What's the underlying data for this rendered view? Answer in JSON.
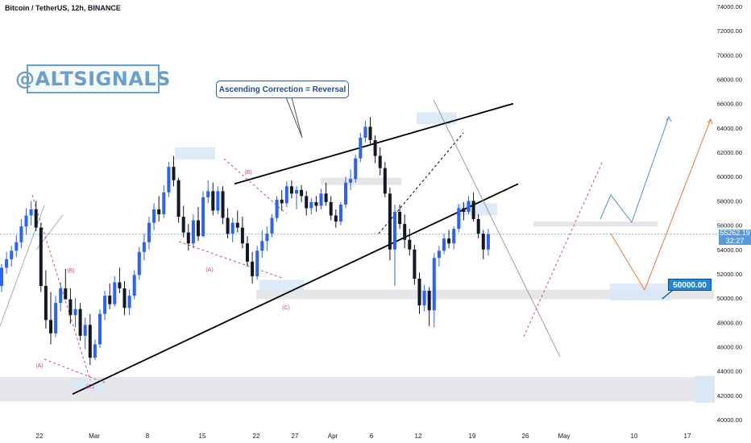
{
  "header": {
    "title": "Bitcoin / TetherUS, 12h, BINANCE"
  },
  "watermark": {
    "text": "@ALTSIGNALS"
  },
  "annotation": {
    "text": "Ascending Correction = Reversal"
  },
  "price_tag": {
    "price": "55262.19",
    "countdown": "32:27"
  },
  "target": {
    "label": "50000.00"
  },
  "wave_labels": [
    "(A)",
    "(B)",
    "(C)",
    "(A)",
    "(B)",
    "(C)"
  ],
  "colors": {
    "up": "#2962ff",
    "down": "#131722",
    "trend": "#000000",
    "zone": "#d7e6f7",
    "support": "#e6e6ea",
    "projection_blue": "#4a8fd8",
    "projection_orange": "#e8772e",
    "wave": "#d64a6a"
  },
  "chart_data": {
    "type": "candlestick",
    "title": "Bitcoin / TetherUS, 12h, BINANCE",
    "interval": "12h",
    "x_tick_labels": [
      "22",
      "Mar",
      "8",
      "15",
      "22",
      "27",
      "Apr",
      "6",
      "12",
      "19",
      "26",
      "May",
      "10",
      "17"
    ],
    "y_tick_labels": [
      "74000.00",
      "72000.00",
      "70000.00",
      "68000.00",
      "66000.00",
      "64000.00",
      "62000.00",
      "60000.00",
      "58000.00",
      "56000.00",
      "54000.00",
      "52000.00",
      "50000.00",
      "48000.00",
      "46000.00",
      "44000.00",
      "42000.00",
      "40000.00"
    ],
    "ylim": [
      40000,
      74000
    ],
    "grid": false,
    "last_price": 55262.19,
    "target_price": 50000.0,
    "ohlc": [
      [
        51000,
        52800,
        50500,
        52500
      ],
      [
        52500,
        53800,
        52000,
        53200
      ],
      [
        53200,
        54300,
        52600,
        53900
      ],
      [
        53900,
        55200,
        53400,
        54600
      ],
      [
        54600,
        56500,
        54100,
        55900
      ],
      [
        55900,
        57400,
        55200,
        56800
      ],
      [
        56800,
        58000,
        56000,
        57300
      ],
      [
        57300,
        58000,
        55500,
        55800
      ],
      [
        55800,
        56200,
        50500,
        51000
      ],
      [
        51000,
        52300,
        47500,
        48200
      ],
      [
        48200,
        50500,
        46200,
        47100
      ],
      [
        47100,
        50200,
        46800,
        49600
      ],
      [
        49600,
        51300,
        48900,
        50800
      ],
      [
        50800,
        52400,
        49900,
        49900
      ],
      [
        49900,
        50800,
        47900,
        48600
      ],
      [
        48600,
        50000,
        47600,
        49100
      ],
      [
        49100,
        49600,
        46500,
        46900
      ],
      [
        46900,
        48400,
        45800,
        47800
      ],
      [
        47800,
        48700,
        44500,
        45100
      ],
      [
        45100,
        46600,
        44900,
        46200
      ],
      [
        46200,
        49100,
        45900,
        48700
      ],
      [
        48700,
        50600,
        48200,
        50200
      ],
      [
        50200,
        51200,
        49100,
        49500
      ],
      [
        49500,
        51800,
        49300,
        51300
      ],
      [
        51300,
        52500,
        50400,
        50800
      ],
      [
        50800,
        51400,
        48600,
        49200
      ],
      [
        49200,
        50700,
        48600,
        50200
      ],
      [
        50200,
        52300,
        49900,
        51900
      ],
      [
        51900,
        54200,
        51500,
        53800
      ],
      [
        53800,
        55300,
        53100,
        54600
      ],
      [
        54600,
        56700,
        54000,
        56200
      ],
      [
        56200,
        57800,
        55600,
        57300
      ],
      [
        57300,
        58400,
        56300,
        56900
      ],
      [
        56900,
        59300,
        56600,
        58700
      ],
      [
        58700,
        61200,
        58300,
        60800
      ],
      [
        60800,
        61700,
        59200,
        59700
      ],
      [
        59700,
        59900,
        56200,
        56700
      ],
      [
        56700,
        57600,
        55000,
        55400
      ],
      [
        55400,
        56100,
        53900,
        54500
      ],
      [
        54500,
        56900,
        54100,
        56400
      ],
      [
        56400,
        57500,
        54700,
        55100
      ],
      [
        55100,
        58800,
        55000,
        58300
      ],
      [
        58300,
        59700,
        57800,
        58800
      ],
      [
        58800,
        59500,
        56800,
        57200
      ],
      [
        57200,
        59200,
        56900,
        58800
      ],
      [
        58800,
        59200,
        56100,
        56600
      ],
      [
        56600,
        57400,
        54900,
        55300
      ],
      [
        55300,
        56600,
        54600,
        56200
      ],
      [
        56200,
        57200,
        55400,
        55800
      ],
      [
        55800,
        56700,
        54100,
        54500
      ],
      [
        54500,
        55100,
        52600,
        53000
      ],
      [
        53000,
        53800,
        51200,
        51800
      ],
      [
        51800,
        54300,
        51500,
        53900
      ],
      [
        53900,
        55600,
        53300,
        54700
      ],
      [
        54700,
        55900,
        53900,
        55300
      ],
      [
        55300,
        56900,
        55000,
        56600
      ],
      [
        56600,
        58400,
        56300,
        58100
      ],
      [
        58100,
        58900,
        57200,
        57800
      ],
      [
        57800,
        59600,
        57500,
        59200
      ],
      [
        59200,
        59700,
        58200,
        58600
      ],
      [
        58600,
        59200,
        57300,
        58900
      ],
      [
        58900,
        59300,
        57900,
        58400
      ],
      [
        58400,
        58800,
        56800,
        57400
      ],
      [
        57400,
        58200,
        56900,
        57900
      ],
      [
        57900,
        58400,
        57100,
        57600
      ],
      [
        57600,
        59000,
        57300,
        58600
      ],
      [
        58600,
        59500,
        57600,
        57900
      ],
      [
        57900,
        58400,
        56400,
        56800
      ],
      [
        56800,
        57300,
        55800,
        56300
      ],
      [
        56300,
        57900,
        56000,
        57700
      ],
      [
        57700,
        60000,
        57400,
        59500
      ],
      [
        59500,
        60600,
        58900,
        59800
      ],
      [
        59800,
        61800,
        59500,
        61500
      ],
      [
        61500,
        63600,
        61200,
        63200
      ],
      [
        63200,
        64600,
        62800,
        64100
      ],
      [
        64100,
        64900,
        62600,
        63000
      ],
      [
        63000,
        63400,
        61100,
        61700
      ],
      [
        61700,
        62400,
        60100,
        60700
      ],
      [
        60700,
        61200,
        58300,
        58600
      ],
      [
        58600,
        59100,
        53100,
        54000
      ],
      [
        54000,
        57700,
        51000,
        57100
      ],
      [
        57100,
        57700,
        55700,
        56100
      ],
      [
        56100,
        56900,
        54100,
        54800
      ],
      [
        54800,
        55700,
        53500,
        54000
      ],
      [
        54000,
        54400,
        51100,
        51600
      ],
      [
        51600,
        52100,
        48700,
        49400
      ],
      [
        49400,
        51100,
        48900,
        50600
      ],
      [
        50600,
        50900,
        47700,
        49000
      ],
      [
        49000,
        53700,
        47600,
        53300
      ],
      [
        53300,
        54300,
        52600,
        53900
      ],
      [
        53900,
        55300,
        53600,
        54900
      ],
      [
        54900,
        55600,
        54100,
        54500
      ],
      [
        54500,
        55900,
        54000,
        55700
      ],
      [
        55700,
        57700,
        55400,
        57400
      ],
      [
        57400,
        57900,
        56400,
        57100
      ],
      [
        57100,
        58400,
        56900,
        58000
      ],
      [
        58000,
        58700,
        56300,
        56500
      ],
      [
        56500,
        56900,
        54900,
        55300
      ],
      [
        55300,
        55600,
        53200,
        54000
      ],
      [
        54000,
        55700,
        53500,
        55262
      ]
    ],
    "trendlines": [
      {
        "name": "upper-trendline",
        "from": [
          "22",
          59400
        ],
        "to": [
          "May",
          66000
        ]
      },
      {
        "name": "lower-trendline",
        "from": [
          "Mar",
          42100
        ],
        "to": [
          "19",
          59400
        ]
      }
    ],
    "annotations": [
      "@ALTSIGNALS",
      "Ascending Correction = Reversal",
      "50000.00"
    ]
  }
}
